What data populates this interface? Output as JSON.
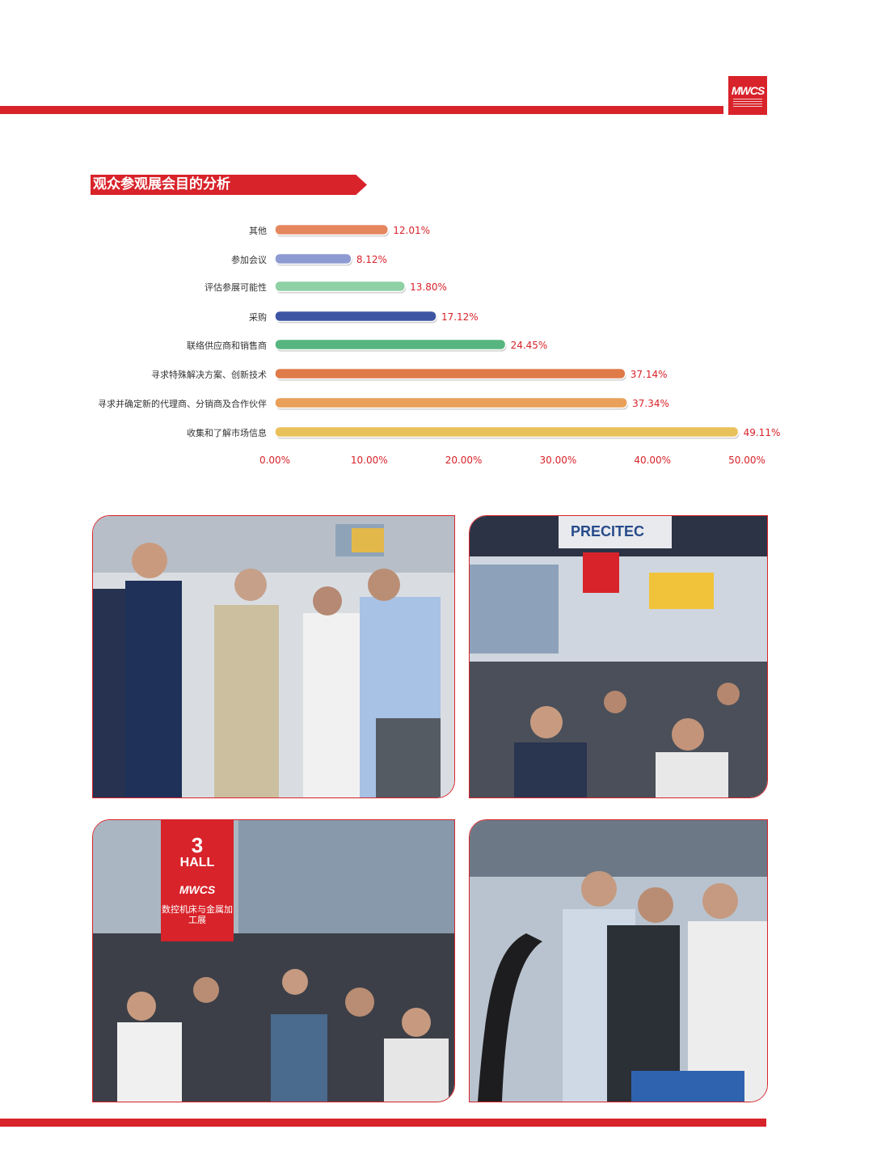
{
  "brand": {
    "logo_text": "MWCS",
    "accent": "#d8232a"
  },
  "section": {
    "title": "观众参观展会目的分析"
  },
  "chart_data": {
    "type": "bar",
    "orientation": "horizontal",
    "title": "观众参观展会目的分析",
    "categories": [
      "其他",
      "参加会议",
      "评估参展可能性",
      "采购",
      "联络供应商和销售商",
      "寻求特殊解决方案、创新技术",
      "寻求并确定新的代理商、分销商及合作伙伴",
      "收集和了解市场信息"
    ],
    "values": [
      12.01,
      8.12,
      13.8,
      17.12,
      24.45,
      37.14,
      37.34,
      49.11
    ],
    "value_labels": [
      "12.01%",
      "8.12%",
      "13.80%",
      "17.12%",
      "24.45%",
      "37.14%",
      "37.34%",
      "49.11%"
    ],
    "colors": [
      "#e4875f",
      "#8e9bd2",
      "#8fd0a5",
      "#3e55a4",
      "#57b680",
      "#df7a49",
      "#e9a058",
      "#e9c15a"
    ],
    "xlim": [
      0,
      50
    ],
    "xticks": [
      "0.00%",
      "10.00%",
      "20.00%",
      "30.00%",
      "40.00%",
      "50.00%"
    ],
    "tick_color": "#d8232a",
    "value_label_color": "#d8232a",
    "grid": false,
    "legend": "none"
  },
  "photos": [
    {
      "name": "photo-visitors-discussion"
    },
    {
      "name": "photo-precitec-booth",
      "sign_text": "PRECITEC"
    },
    {
      "name": "photo-hall-3-crowd",
      "hall_number": "3",
      "hall_word": "HALL",
      "hall_logo": "MWCS",
      "hall_text": "数控机床与金属加工展"
    },
    {
      "name": "photo-visitors-phones"
    }
  ]
}
